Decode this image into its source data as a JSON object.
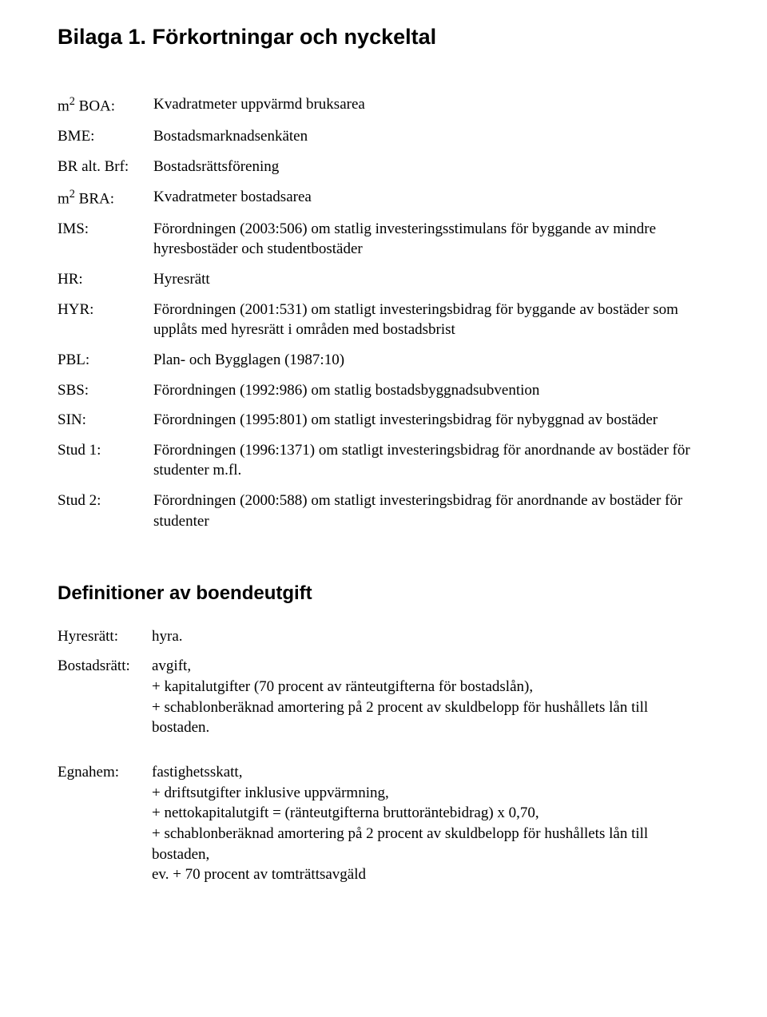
{
  "title": "Bilaga 1. Förkortningar och nyckeltal",
  "abbrev": [
    {
      "term_html": "m<span class=\"sup\">2</span> BOA:",
      "desc": "Kvadratmeter uppvärmd bruksarea"
    },
    {
      "term_html": "BME:",
      "desc": "Bostadsmarknadsenkäten"
    },
    {
      "term_html": "BR alt. Brf:",
      "desc": "Bostadsrättsförening"
    },
    {
      "term_html": "m<span class=\"sup\">2</span> BRA:",
      "desc": "Kvadratmeter bostadsarea"
    },
    {
      "term_html": "IMS:",
      "desc": "Förordningen (2003:506) om statlig investeringsstimulans för byggande av mindre hyresbostäder och studentbostäder"
    },
    {
      "term_html": "HR:",
      "desc": "Hyresrätt"
    },
    {
      "term_html": "HYR:",
      "desc": "Förordningen (2001:531) om statligt investeringsbidrag för byggande av bostäder som upplåts med hyresrätt i områden med bostadsbrist"
    },
    {
      "term_html": "PBL:",
      "desc": "Plan- och  Bygglagen (1987:10)"
    },
    {
      "term_html": "SBS:",
      "desc": "Förordningen (1992:986) om statlig bostadsbyggnadsubvention"
    },
    {
      "term_html": "SIN:",
      "desc": "Förordningen (1995:801) om statligt investeringsbidrag för nybyggnad av bostäder"
    },
    {
      "term_html": "Stud 1:",
      "desc": "Förordningen (1996:1371) om statligt investeringsbidrag för anordnande av bostäder för studenter m.fl."
    },
    {
      "term_html": "Stud 2:",
      "desc": "Förordningen (2000:588) om statligt investeringsbidrag för anordnande av bostäder för studenter"
    }
  ],
  "definitions_heading": "Definitioner av boendeutgift",
  "definitions": [
    {
      "term": "Hyresrätt:",
      "desc_html": "hyra."
    },
    {
      "term": "Bostadsrätt:",
      "desc_html": "avgift,<br>+ kapitalutgifter (70 procent av ränteutgifterna för bostadslån),<br>+ schablonberäknad amortering på 2 procent av skuldbelopp för hushållets lån till bostaden."
    },
    {
      "term": "Egnahem:",
      "desc_html": "fastighetsskatt,<br>+ driftsutgifter inklusive uppvärmning,<br>+ nettokapitalutgift = (ränteutgifterna bruttoräntebidrag) x 0,70,<br>+ schablonberäknad amortering på 2 procent av skuldbelopp för hushållets lån till bostaden,<br>ev. + 70 procent av tomträttsavgäld"
    }
  ]
}
